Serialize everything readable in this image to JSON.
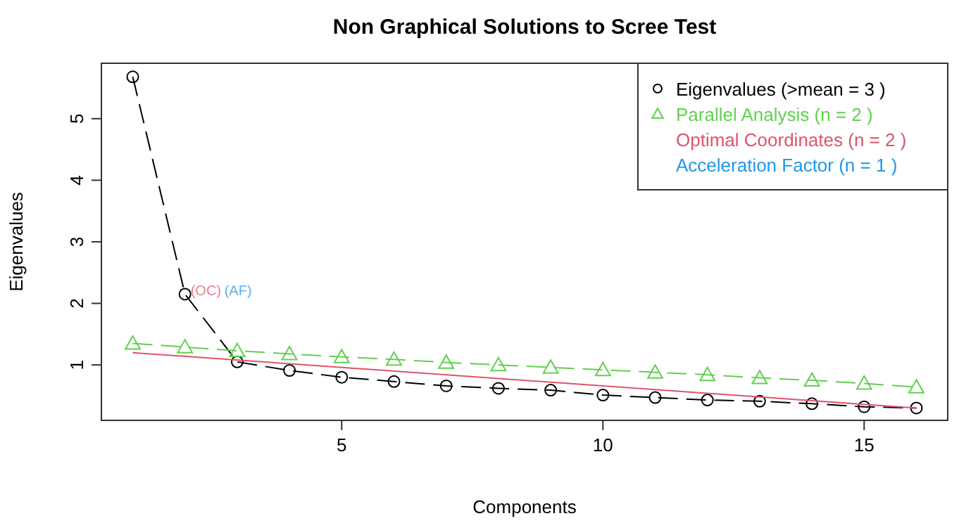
{
  "chart_data": {
    "type": "line",
    "title": "Non Graphical Solutions to Scree Test",
    "xlabel": "Components",
    "ylabel": "Eigenvalues",
    "xlim": [
      0.4,
      16.6
    ],
    "ylim": [
      0.1,
      5.9
    ],
    "xticks": [
      5,
      10,
      15
    ],
    "yticks": [
      1,
      2,
      3,
      4,
      5
    ],
    "grid": false,
    "legend": "top right",
    "series": [
      {
        "name": "Eigenvalues (>mean  =  3 )",
        "color": "#000000",
        "marker": "circle",
        "line_style": "dashed",
        "x": [
          1,
          2,
          3,
          4,
          5,
          6,
          7,
          8,
          9,
          10,
          11,
          12,
          13,
          14,
          15,
          16
        ],
        "values": [
          5.68,
          2.15,
          1.05,
          0.91,
          0.8,
          0.73,
          0.66,
          0.62,
          0.59,
          0.51,
          0.47,
          0.43,
          0.41,
          0.37,
          0.32,
          0.3
        ]
      },
      {
        "name": "Parallel Analysis (n =  2 )",
        "color": "#61d04f",
        "marker": "triangle",
        "line_style": "dashed",
        "x": [
          1,
          2,
          3,
          4,
          5,
          6,
          7,
          8,
          9,
          10,
          11,
          12,
          13,
          14,
          15,
          16
        ],
        "values": [
          1.35,
          1.29,
          1.23,
          1.18,
          1.13,
          1.09,
          1.04,
          1.0,
          0.96,
          0.92,
          0.88,
          0.84,
          0.79,
          0.75,
          0.7,
          0.64
        ]
      },
      {
        "name": "Optimal Coordinates (n =  2 )",
        "color": "#df536b",
        "marker": "none",
        "line_style": "solid",
        "x": [
          1,
          16
        ],
        "values": [
          1.2,
          0.3
        ]
      },
      {
        "name": "Acceleration Factor (n =  1 )",
        "color": "#2297e6",
        "marker": "none"
      }
    ],
    "annotations": [
      {
        "text": "(OC)",
        "x": 2,
        "y": 2.15
      },
      {
        "text": "(AF)",
        "x": 2,
        "y": 2.15
      }
    ]
  }
}
